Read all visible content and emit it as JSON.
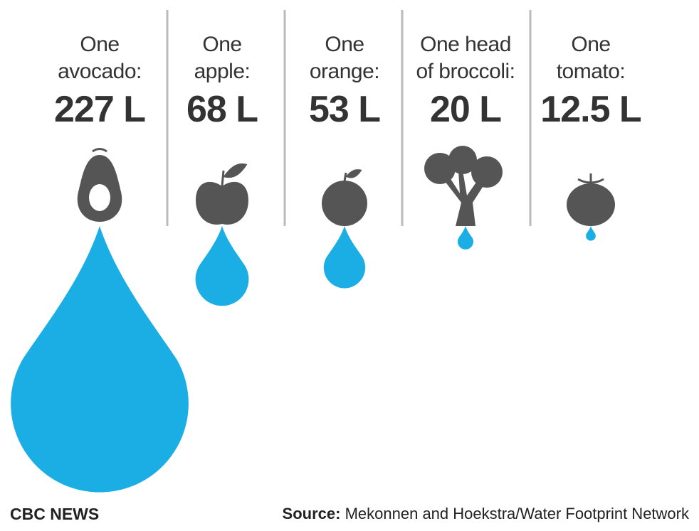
{
  "chart_data": {
    "type": "drop",
    "categories": [
      "One\navocado:",
      "One\napple:",
      "One\norange:",
      "One head\nof broccoli:",
      "One\ntomato:"
    ],
    "values": [
      227,
      68,
      53,
      20,
      12.5
    ],
    "value_labels": [
      "227 L",
      "68 L",
      "53 L",
      "20 L",
      "12.5 L"
    ],
    "color": "#1aaee5",
    "source_label": "Source:",
    "source": "Mekonnen and Hoekstra/Water Footprint Network",
    "logo": "CBC NEWS"
  }
}
